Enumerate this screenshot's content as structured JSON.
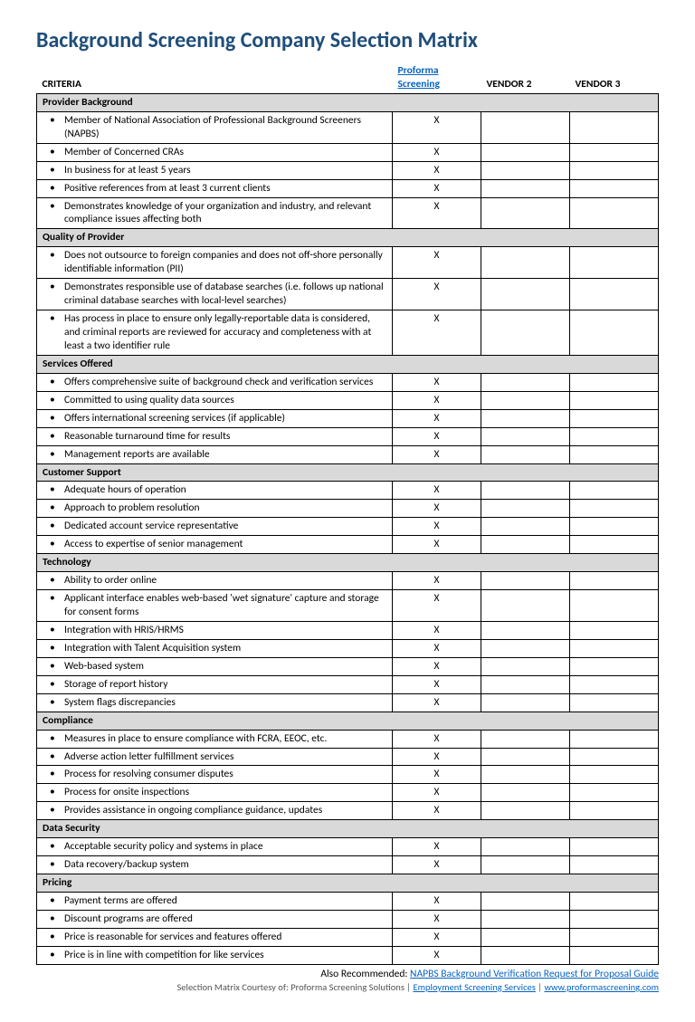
{
  "title": "Background Screening Company Selection Matrix",
  "headers": {
    "criteria": "CRITERIA",
    "vendor1_line1": "Proforma",
    "vendor1_line2": "Screening",
    "vendor2": "VENDOR 2",
    "vendor3": "VENDOR 3"
  },
  "sections": [
    {
      "name": "Provider Background",
      "items": [
        {
          "text": "Member of National Association of Professional Background Screeners (NAPBS)",
          "v1": "X"
        },
        {
          "text": "Member of Concerned CRAs",
          "v1": "X"
        },
        {
          "text": "In business for at least 5 years",
          "v1": "X"
        },
        {
          "text": "Positive references from at least 3 current clients",
          "v1": "X"
        },
        {
          "text": "Demonstrates knowledge of your organization and industry, and relevant compliance issues affecting both",
          "v1": "X"
        }
      ]
    },
    {
      "name": "Quality of Provider",
      "items": [
        {
          "text": "Does not outsource to foreign companies and does not off-shore personally identifiable information (PII)",
          "v1": "X"
        },
        {
          "text": "Demonstrates responsible use of database searches (i.e. follows up national criminal database searches with local-level searches)",
          "v1": "X"
        },
        {
          "text": "Has process in place to ensure only legally-reportable data is considered, and criminal reports are reviewed for accuracy and completeness with at least a two identifier rule",
          "v1": "X"
        }
      ]
    },
    {
      "name": "Services Offered",
      "items": [
        {
          "text": "Offers comprehensive suite of background check and verification services",
          "v1": "X"
        },
        {
          "text": "Committed to using quality data sources",
          "v1": "X"
        },
        {
          "text": "Offers international screening services (if applicable)",
          "v1": "X"
        },
        {
          "text": "Reasonable turnaround time for results",
          "v1": "X"
        },
        {
          "text": "Management reports are available",
          "v1": "X"
        }
      ]
    },
    {
      "name": "Customer Support",
      "items": [
        {
          "text": "Adequate hours of operation",
          "v1": "X"
        },
        {
          "text": "Approach to problem resolution",
          "v1": "X"
        },
        {
          "text": "Dedicated account service representative",
          "v1": "X"
        },
        {
          "text": "Access to expertise of senior management",
          "v1": "X"
        }
      ]
    },
    {
      "name": "Technology",
      "items": [
        {
          "text": "Ability to order online",
          "v1": "X"
        },
        {
          "text": "Applicant interface enables web-based 'wet signature' capture and storage for consent forms",
          "v1": "X"
        },
        {
          "text": "Integration with HRIS/HRMS",
          "v1": "X"
        },
        {
          "text": "Integration with Talent Acquisition system",
          "v1": "X"
        },
        {
          "text": "Web-based system",
          "v1": "X"
        },
        {
          "text": "Storage of report history",
          "v1": "X"
        },
        {
          "text": "System flags discrepancies",
          "v1": "X"
        }
      ]
    },
    {
      "name": "Compliance",
      "items": [
        {
          "text": "Measures in place to ensure compliance with FCRA, EEOC, etc.",
          "v1": "X"
        },
        {
          "text": "Adverse action letter fulfillment services",
          "v1": "X"
        },
        {
          "text": "Process for resolving consumer disputes",
          "v1": "X"
        },
        {
          "text": "Process for onsite inspections",
          "v1": "X"
        },
        {
          "text": "Provides assistance in ongoing compliance guidance, updates",
          "v1": "X"
        }
      ]
    },
    {
      "name": "Data Security",
      "items": [
        {
          "text": "Acceptable security policy and systems in place",
          "v1": "X"
        },
        {
          "text": "Data recovery/backup system",
          "v1": "X"
        }
      ]
    },
    {
      "name": "Pricing",
      "items": [
        {
          "text": "Payment terms are offered",
          "v1": "X"
        },
        {
          "text": "Discount programs are offered",
          "v1": "X"
        },
        {
          "text": "Price is reasonable for services and features offered",
          "v1": "X"
        },
        {
          "text": "Price is in line with competition for like services",
          "v1": "X"
        }
      ]
    }
  ],
  "footer": {
    "line1_prefix": "Also Recommended: ",
    "line1_link": "NAPBS Background Verification Request for Proposal Guide",
    "line2_prefix": "Selection Matrix Courtesy of: Proforma Screening Solutions | ",
    "line2_link1": "Employment Screening Services",
    "line2_mid": " | ",
    "line2_link2": " www.proformascreening.com"
  }
}
